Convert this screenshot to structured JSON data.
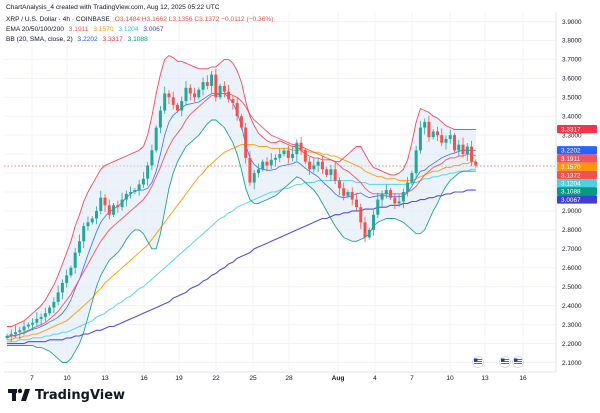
{
  "header_text": "ChartAnalysis_4 created with TradingView.com, Aug 12, 2025 05:22 UTC",
  "legend": {
    "symbol": "XRP / U.S. Dollar · 4h · COINBASE",
    "ohlc": "O3.1484  H3.1662  L3.1356  C3.1372  −0.0112 (−0.36%)",
    "ema_label": "EMA 20/50/100/200",
    "ema_values": [
      "3.1911",
      "3.1570",
      "3.1204",
      "3.0067"
    ],
    "bb_label": "BB (20, SMA, close, 2)",
    "bb_values": [
      "3.2202",
      "3.3317",
      "3.1088"
    ]
  },
  "footer": {
    "brand": "TradingView"
  },
  "colors": {
    "up": "#26a69a",
    "down": "#ef5350",
    "ema20": "#f7525f",
    "ema50": "#ff9800",
    "ema100": "#4dd0e1",
    "ema200": "#3f3fd6",
    "bb_basis": "#2962ff",
    "bb_upper": "#f23645",
    "bb_lower": "#089981",
    "bb_fill": "#dbe7f5"
  },
  "chart_data": {
    "type": "candlestick",
    "interval": "4h",
    "ylim": [
      2.05,
      3.95
    ],
    "yticks": [
      "3.9000",
      "3.8000",
      "3.7000",
      "3.6000",
      "3.5000",
      "3.4000",
      "3.3000",
      "3.2000",
      "3.1000",
      "3.0000",
      "2.9000",
      "2.8000",
      "2.7000",
      "2.6000",
      "2.5000",
      "2.4000",
      "2.3000",
      "2.2000",
      "2.1000"
    ],
    "xticks": [
      "7",
      "10",
      "13",
      "16",
      "19",
      "22",
      "25",
      "28",
      "Aug",
      "4",
      "7",
      "10",
      "13",
      "16"
    ],
    "price_tags": [
      {
        "text": "3.3317",
        "color": "#f23645"
      },
      {
        "text": "3.2202",
        "color": "#2962ff"
      },
      {
        "text": "3.1911",
        "color": "#f7525f"
      },
      {
        "text": "3.1570",
        "color": "#ff9800"
      },
      {
        "text": "3.1372",
        "color": "#ef5350"
      },
      {
        "text": "3.1204",
        "color": "#4dd0e1"
      },
      {
        "text": "3.1088",
        "color": "#089981"
      },
      {
        "text": "3.0067",
        "color": "#3f3fd6"
      }
    ],
    "price_tag_values": [
      3.3317,
      3.2202,
      3.1911,
      3.157,
      3.1372,
      3.1204,
      3.1088,
      3.0067
    ],
    "closes": [
      2.24,
      2.25,
      2.26,
      2.27,
      2.29,
      2.3,
      2.31,
      2.33,
      2.34,
      2.36,
      2.39,
      2.42,
      2.47,
      2.52,
      2.56,
      2.6,
      2.68,
      2.74,
      2.82,
      2.84,
      2.86,
      2.9,
      2.97,
      2.93,
      2.88,
      2.93,
      2.92,
      2.96,
      2.99,
      3.0,
      3.01,
      3.04,
      3.07,
      3.14,
      3.22,
      3.34,
      3.43,
      3.52,
      3.5,
      3.46,
      3.43,
      3.48,
      3.55,
      3.52,
      3.5,
      3.54,
      3.58,
      3.56,
      3.62,
      3.5,
      3.56,
      3.53,
      3.49,
      3.47,
      3.4,
      3.34,
      3.18,
      3.05,
      3.1,
      3.12,
      3.16,
      3.14,
      3.17,
      3.18,
      3.2,
      3.22,
      3.18,
      3.2,
      3.26,
      3.22,
      3.16,
      3.12,
      3.14,
      3.16,
      3.12,
      3.09,
      3.12,
      3.06,
      3.02,
      2.98,
      3.0,
      2.96,
      2.92,
      2.84,
      2.76,
      2.8,
      2.88,
      2.96,
      2.99,
      3.01,
      2.97,
      2.94,
      2.95,
      3.0,
      3.05,
      3.1,
      3.22,
      3.34,
      3.37,
      3.29,
      3.32,
      3.3,
      3.26,
      3.28,
      3.3,
      3.22,
      3.25,
      3.2,
      3.24,
      3.16,
      3.14
    ],
    "indicator_series": {
      "ema20": [
        2.23,
        2.24,
        2.24,
        2.25,
        2.26,
        2.27,
        2.28,
        2.29,
        2.3,
        2.31,
        2.33,
        2.35,
        2.37,
        2.4,
        2.43,
        2.46,
        2.5,
        2.54,
        2.58,
        2.62,
        2.66,
        2.7,
        2.74,
        2.77,
        2.8,
        2.82,
        2.84,
        2.86,
        2.88,
        2.9,
        2.92,
        2.94,
        2.96,
        2.99,
        3.03,
        3.08,
        3.13,
        3.19,
        3.24,
        3.28,
        3.31,
        3.34,
        3.38,
        3.41,
        3.43,
        3.45,
        3.47,
        3.49,
        3.51,
        3.51,
        3.52,
        3.52,
        3.52,
        3.51,
        3.5,
        3.48,
        3.45,
        3.41,
        3.38,
        3.36,
        3.34,
        3.32,
        3.3,
        3.29,
        3.28,
        3.27,
        3.26,
        3.25,
        3.25,
        3.24,
        3.23,
        3.22,
        3.21,
        3.2,
        3.19,
        3.18,
        3.17,
        3.16,
        3.14,
        3.12,
        3.11,
        3.09,
        3.07,
        3.05,
        3.02,
        3.0,
        2.99,
        2.99,
        2.99,
        2.99,
        2.99,
        2.99,
        2.99,
        2.99,
        3.0,
        3.01,
        3.03,
        3.06,
        3.09,
        3.11,
        3.13,
        3.14,
        3.15,
        3.17,
        3.18,
        3.18,
        3.19,
        3.19,
        3.2,
        3.2,
        3.19
      ],
      "ema50": [
        2.22,
        2.22,
        2.23,
        2.23,
        2.24,
        2.24,
        2.25,
        2.25,
        2.26,
        2.27,
        2.28,
        2.29,
        2.3,
        2.31,
        2.32,
        2.34,
        2.36,
        2.38,
        2.4,
        2.42,
        2.44,
        2.47,
        2.49,
        2.52,
        2.54,
        2.56,
        2.58,
        2.6,
        2.62,
        2.64,
        2.66,
        2.68,
        2.7,
        2.72,
        2.75,
        2.78,
        2.81,
        2.84,
        2.87,
        2.9,
        2.93,
        2.96,
        2.99,
        3.02,
        3.05,
        3.08,
        3.1,
        3.13,
        3.15,
        3.17,
        3.19,
        3.21,
        3.22,
        3.23,
        3.24,
        3.25,
        3.25,
        3.25,
        3.25,
        3.24,
        3.24,
        3.24,
        3.23,
        3.23,
        3.23,
        3.23,
        3.23,
        3.22,
        3.22,
        3.22,
        3.22,
        3.21,
        3.21,
        3.21,
        3.2,
        3.2,
        3.19,
        3.19,
        3.18,
        3.17,
        3.16,
        3.15,
        3.14,
        3.13,
        3.11,
        3.1,
        3.09,
        3.08,
        3.08,
        3.07,
        3.07,
        3.07,
        3.06,
        3.06,
        3.06,
        3.06,
        3.07,
        3.08,
        3.09,
        3.1,
        3.11,
        3.11,
        3.12,
        3.13,
        3.13,
        3.14,
        3.14,
        3.15,
        3.15,
        3.16,
        3.16
      ],
      "ema100": [
        2.21,
        2.21,
        2.21,
        2.22,
        2.22,
        2.22,
        2.23,
        2.23,
        2.23,
        2.24,
        2.24,
        2.25,
        2.25,
        2.26,
        2.26,
        2.27,
        2.28,
        2.29,
        2.3,
        2.31,
        2.32,
        2.34,
        2.35,
        2.36,
        2.38,
        2.39,
        2.41,
        2.42,
        2.44,
        2.45,
        2.47,
        2.49,
        2.5,
        2.52,
        2.54,
        2.56,
        2.58,
        2.6,
        2.62,
        2.64,
        2.66,
        2.68,
        2.7,
        2.72,
        2.74,
        2.76,
        2.78,
        2.8,
        2.82,
        2.84,
        2.86,
        2.87,
        2.89,
        2.9,
        2.92,
        2.93,
        2.94,
        2.95,
        2.96,
        2.97,
        2.98,
        2.99,
        3.0,
        3.0,
        3.01,
        3.02,
        3.02,
        3.03,
        3.04,
        3.04,
        3.05,
        3.05,
        3.05,
        3.06,
        3.06,
        3.06,
        3.06,
        3.06,
        3.06,
        3.06,
        3.06,
        3.06,
        3.05,
        3.05,
        3.05,
        3.04,
        3.04,
        3.04,
        3.04,
        3.04,
        3.04,
        3.04,
        3.04,
        3.04,
        3.04,
        3.05,
        3.05,
        3.06,
        3.07,
        3.07,
        3.08,
        3.08,
        3.09,
        3.09,
        3.1,
        3.1,
        3.11,
        3.11,
        3.11,
        3.12,
        3.12
      ],
      "ema200": [
        2.2,
        2.2,
        2.2,
        2.2,
        2.2,
        2.21,
        2.21,
        2.21,
        2.21,
        2.21,
        2.22,
        2.22,
        2.22,
        2.22,
        2.23,
        2.23,
        2.24,
        2.24,
        2.25,
        2.25,
        2.26,
        2.27,
        2.27,
        2.28,
        2.29,
        2.29,
        2.3,
        2.31,
        2.32,
        2.33,
        2.34,
        2.35,
        2.36,
        2.37,
        2.38,
        2.39,
        2.4,
        2.41,
        2.42,
        2.44,
        2.45,
        2.46,
        2.47,
        2.49,
        2.5,
        2.51,
        2.53,
        2.54,
        2.56,
        2.57,
        2.59,
        2.6,
        2.62,
        2.63,
        2.65,
        2.66,
        2.67,
        2.68,
        2.7,
        2.71,
        2.72,
        2.73,
        2.74,
        2.75,
        2.76,
        2.77,
        2.78,
        2.79,
        2.8,
        2.81,
        2.82,
        2.83,
        2.84,
        2.85,
        2.86,
        2.86,
        2.87,
        2.88,
        2.88,
        2.89,
        2.89,
        2.9,
        2.9,
        2.9,
        2.91,
        2.91,
        2.91,
        2.92,
        2.92,
        2.92,
        2.93,
        2.93,
        2.93,
        2.94,
        2.94,
        2.95,
        2.95,
        2.96,
        2.96,
        2.97,
        2.97,
        2.98,
        2.98,
        2.99,
        2.99,
        3.0,
        3.0,
        3.0,
        3.01,
        3.01,
        3.01
      ],
      "bb_upper": [
        2.29,
        2.29,
        2.3,
        2.31,
        2.32,
        2.34,
        2.36,
        2.38,
        2.4,
        2.43,
        2.47,
        2.51,
        2.56,
        2.62,
        2.68,
        2.74,
        2.82,
        2.88,
        2.95,
        3.0,
        3.04,
        3.08,
        3.12,
        3.14,
        3.15,
        3.16,
        3.17,
        3.18,
        3.19,
        3.2,
        3.21,
        3.22,
        3.24,
        3.3,
        3.4,
        3.52,
        3.62,
        3.7,
        3.72,
        3.71,
        3.69,
        3.69,
        3.68,
        3.67,
        3.66,
        3.65,
        3.65,
        3.65,
        3.66,
        3.66,
        3.68,
        3.7,
        3.7,
        3.68,
        3.64,
        3.58,
        3.48,
        3.4,
        3.35,
        3.31,
        3.29,
        3.27,
        3.26,
        3.26,
        3.27,
        3.26,
        3.25,
        3.24,
        3.24,
        3.22,
        3.2,
        3.19,
        3.18,
        3.18,
        3.17,
        3.17,
        3.17,
        3.16,
        3.16,
        3.18,
        3.2,
        3.22,
        3.24,
        3.24,
        3.2,
        3.16,
        3.13,
        3.12,
        3.11,
        3.1,
        3.09,
        3.09,
        3.1,
        3.12,
        3.17,
        3.26,
        3.37,
        3.44,
        3.43,
        3.42,
        3.4,
        3.39,
        3.37,
        3.35,
        3.34,
        3.33,
        3.33,
        3.33,
        3.33,
        3.33,
        3.33
      ],
      "bb_lower": [
        2.19,
        2.19,
        2.19,
        2.19,
        2.19,
        2.19,
        2.19,
        2.18,
        2.18,
        2.17,
        2.16,
        2.14,
        2.12,
        2.1,
        2.1,
        2.12,
        2.16,
        2.2,
        2.26,
        2.34,
        2.42,
        2.5,
        2.56,
        2.6,
        2.64,
        2.66,
        2.68,
        2.71,
        2.75,
        2.78,
        2.8,
        2.8,
        2.78,
        2.74,
        2.7,
        2.7,
        2.78,
        2.9,
        3.02,
        3.1,
        3.16,
        3.2,
        3.24,
        3.26,
        3.28,
        3.3,
        3.33,
        3.36,
        3.38,
        3.38,
        3.36,
        3.34,
        3.3,
        3.26,
        3.2,
        3.12,
        3.02,
        2.96,
        2.94,
        2.94,
        2.95,
        2.96,
        2.97,
        2.98,
        3.0,
        3.02,
        3.04,
        3.06,
        3.08,
        3.07,
        3.05,
        3.03,
        3.01,
        2.98,
        2.94,
        2.9,
        2.86,
        2.82,
        2.79,
        2.76,
        2.75,
        2.74,
        2.74,
        2.75,
        2.76,
        2.78,
        2.82,
        2.84,
        2.85,
        2.86,
        2.86,
        2.86,
        2.85,
        2.84,
        2.82,
        2.8,
        2.78,
        2.78,
        2.8,
        2.85,
        2.9,
        2.94,
        2.99,
        3.03,
        3.06,
        3.08,
        3.1,
        3.11,
        3.11,
        3.11,
        3.11
      ]
    }
  }
}
